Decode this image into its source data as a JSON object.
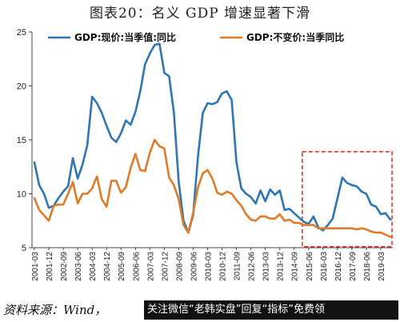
{
  "figure_title": "图表20：名义 GDP 增速显著下滑",
  "source_text": "资料来源：Wind，",
  "banner_text": "关注微信“老韩实盘”回复“指标”免费领",
  "colors": {
    "nominal": "#2e75b6",
    "real": "#e07b2a",
    "highlight_box": "#e8302a",
    "axis": "#444444"
  },
  "chart_data": {
    "type": "line",
    "title": "名义 GDP 增速显著下滑",
    "xlabel": "",
    "ylabel": "",
    "ylim": [
      5,
      25
    ],
    "yticks": [
      5,
      10,
      15,
      20,
      25
    ],
    "legend_position": "top",
    "grid": false,
    "tick_labels": [
      "2001-03",
      "2001-12",
      "2002-09",
      "2003-06",
      "2004-03",
      "2004-12",
      "2005-09",
      "2006-06",
      "2007-03",
      "2007-12",
      "2008-09",
      "2009-06",
      "2010-03",
      "2010-12",
      "2011-09",
      "2012-06",
      "2013-03",
      "2013-12",
      "2014-09",
      "2015-06",
      "2016-03",
      "2016-12",
      "2017-09",
      "2018-06",
      "2019-03"
    ],
    "x": [
      "2001-03",
      "2001-06",
      "2001-09",
      "2001-12",
      "2002-03",
      "2002-06",
      "2002-09",
      "2002-12",
      "2003-03",
      "2003-06",
      "2003-09",
      "2003-12",
      "2004-03",
      "2004-06",
      "2004-09",
      "2004-12",
      "2005-03",
      "2005-06",
      "2005-09",
      "2005-12",
      "2006-03",
      "2006-06",
      "2006-09",
      "2006-12",
      "2007-03",
      "2007-06",
      "2007-09",
      "2007-12",
      "2008-03",
      "2008-06",
      "2008-09",
      "2008-12",
      "2009-03",
      "2009-06",
      "2009-09",
      "2009-12",
      "2010-03",
      "2010-06",
      "2010-09",
      "2010-12",
      "2011-03",
      "2011-06",
      "2011-09",
      "2011-12",
      "2012-03",
      "2012-06",
      "2012-09",
      "2012-12",
      "2013-03",
      "2013-06",
      "2013-09",
      "2013-12",
      "2014-03",
      "2014-06",
      "2014-09",
      "2014-12",
      "2015-03",
      "2015-06",
      "2015-09",
      "2015-12",
      "2016-03",
      "2016-06",
      "2016-09",
      "2016-12",
      "2017-03",
      "2017-06",
      "2017-09",
      "2017-12",
      "2018-03",
      "2018-06",
      "2018-09",
      "2018-12",
      "2019-03",
      "2019-06",
      "2019-09"
    ],
    "series": [
      {
        "name": "GDP:现价:当季值:同比",
        "color": "#2e75b6",
        "values": [
          12.9,
          10.8,
          10.0,
          8.7,
          8.9,
          9.6,
          10.2,
          10.7,
          13.3,
          11.4,
          12.7,
          14.5,
          19.0,
          18.4,
          17.5,
          16.3,
          15.2,
          14.8,
          15.6,
          16.8,
          16.4,
          17.6,
          19.5,
          22.0,
          23.0,
          23.8,
          23.9,
          21.2,
          20.9,
          17.5,
          11.1,
          7.5,
          6.4,
          8.0,
          13.5,
          17.5,
          18.4,
          18.3,
          18.5,
          19.3,
          19.5,
          18.7,
          12.9,
          10.5,
          10.0,
          9.7,
          9.1,
          10.3,
          9.3,
          10.4,
          9.9,
          10.3,
          8.5,
          8.6,
          8.2,
          7.8,
          7.4,
          7.2,
          7.9,
          6.9,
          6.6,
          7.1,
          7.7,
          9.6,
          11.5,
          11.0,
          10.8,
          10.7,
          10.2,
          10.0,
          9.0,
          8.8,
          8.1,
          8.2,
          7.6
        ]
      },
      {
        "name": "GDP:不变价:当季同比",
        "color": "#e07b2a",
        "values": [
          9.6,
          8.5,
          8.0,
          7.5,
          8.9,
          9.0,
          9.0,
          10.0,
          11.1,
          9.1,
          10.0,
          10.0,
          10.5,
          11.6,
          9.5,
          8.8,
          11.2,
          11.2,
          10.1,
          10.6,
          12.4,
          13.7,
          12.2,
          12.1,
          13.8,
          15.0,
          14.4,
          14.2,
          11.5,
          10.8,
          9.5,
          7.1,
          6.4,
          8.2,
          10.6,
          11.9,
          12.2,
          11.4,
          10.1,
          9.9,
          10.2,
          10.0,
          9.4,
          8.9,
          8.1,
          7.6,
          7.5,
          7.9,
          7.9,
          7.7,
          7.7,
          8.1,
          7.5,
          7.6,
          7.3,
          7.3,
          7.1,
          7.1,
          7.1,
          6.8,
          6.8,
          6.8,
          6.8,
          6.8,
          6.8,
          6.8,
          6.8,
          6.7,
          6.8,
          6.7,
          6.5,
          6.4,
          6.4,
          6.2,
          6.0
        ]
      }
    ],
    "highlight_region": {
      "from": "2015-06",
      "to": "2019-09",
      "y_from": 5.1,
      "y_to": 13.9
    }
  }
}
